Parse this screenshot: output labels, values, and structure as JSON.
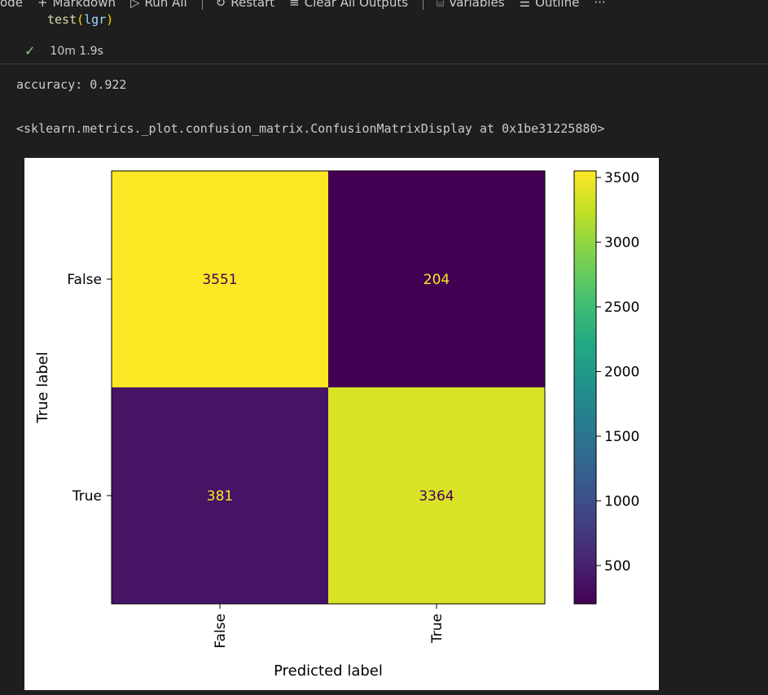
{
  "toolbar": {
    "items": [
      {
        "icon": "code-icon",
        "label": "ode"
      },
      {
        "icon": "plus-icon",
        "glyph": "+",
        "label": "Markdown"
      },
      {
        "icon": "run-all-icon",
        "glyph": "▷",
        "label": "Run All"
      },
      {
        "icon": "restart-icon",
        "glyph": "↻",
        "label": "Restart"
      },
      {
        "icon": "clear-outputs-icon",
        "glyph": "≡",
        "label": "Clear All Outputs"
      },
      {
        "icon": "variables-icon",
        "glyph": "⌸",
        "label": "Variables"
      },
      {
        "icon": "outline-icon",
        "glyph": "☰",
        "label": "Outline"
      },
      {
        "icon": "more-icon",
        "glyph": "···",
        "label": ""
      }
    ]
  },
  "cell": {
    "code_func": "test",
    "code_open": "(",
    "code_arg": "lgr",
    "code_close": ")",
    "exec_time": "10m 1.9s"
  },
  "output": {
    "accuracy_line": "accuracy: 0.922",
    "repr_line": "<sklearn.metrics._plot.confusion_matrix.ConfusionMatrixDisplay at 0x1be31225880>"
  },
  "chart_data": {
    "type": "heatmap",
    "title": "",
    "xlabel": "Predicted label",
    "ylabel": "True label",
    "x_categories": [
      "False",
      "True"
    ],
    "y_categories": [
      "False",
      "True"
    ],
    "values": [
      [
        3551,
        204
      ],
      [
        381,
        3364
      ]
    ],
    "colormap": "viridis",
    "colorbar": {
      "range": [
        204,
        3551
      ],
      "ticks": [
        500,
        1000,
        1500,
        2000,
        2500,
        3000,
        3500
      ]
    },
    "colors": {
      "low": "#440154",
      "high": "#fde725",
      "text_on_dark": "#fde725",
      "text_on_light": "#440154"
    }
  }
}
